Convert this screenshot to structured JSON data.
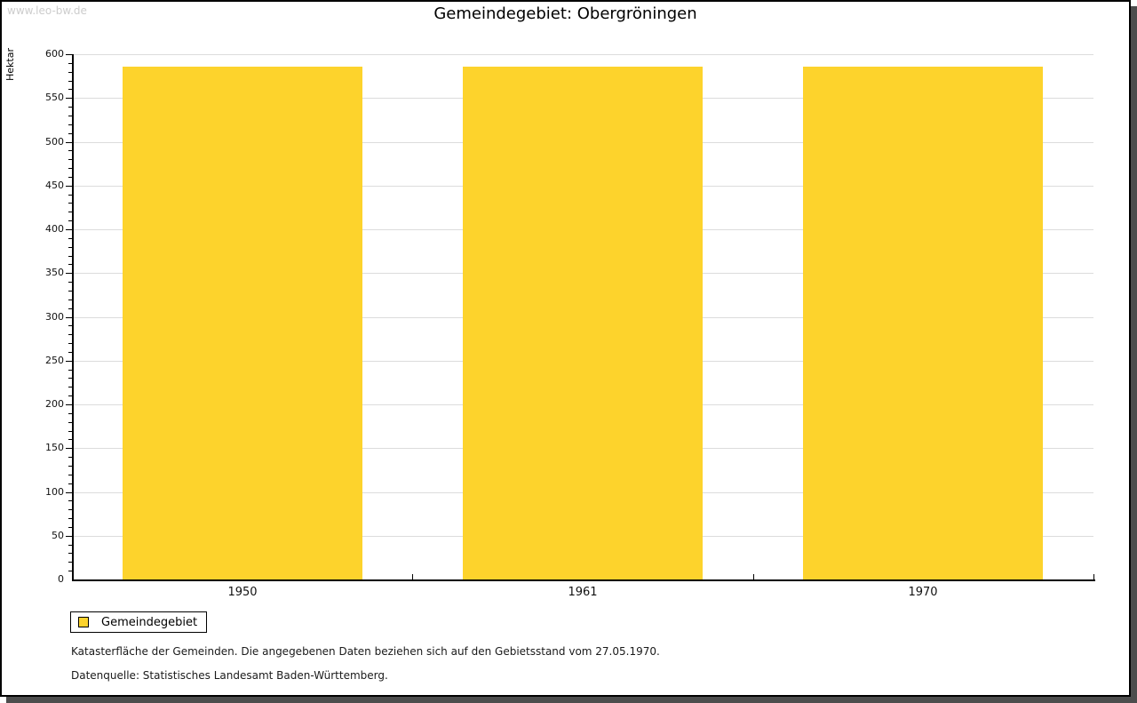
{
  "watermark": "www.leo-bw.de",
  "title": "Gemeindegebiet: Obergröningen",
  "chart_data": {
    "type": "bar",
    "title": "Gemeindegebiet: Obergröningen",
    "xlabel": "",
    "ylabel": "Hektar",
    "categories": [
      "1950",
      "1961",
      "1970"
    ],
    "series": [
      {
        "name": "Gemeindegebiet",
        "values": [
          586,
          586,
          586
        ]
      }
    ],
    "ylim": [
      0,
      600
    ],
    "yticks": [
      0,
      50,
      100,
      150,
      200,
      250,
      300,
      350,
      400,
      450,
      500,
      550,
      600
    ],
    "ytick_minor_step": 10,
    "grid": true,
    "legend_position": "bottom-left",
    "bar_color": "#fdd32c"
  },
  "legend": {
    "items": [
      {
        "label": "Gemeindegebiet",
        "color": "#fdd32c"
      }
    ]
  },
  "notes": {
    "line1": "Katasterfläche der Gemeinden. Die angegebenen Daten beziehen sich auf den Gebietsstand vom 27.05.1970.",
    "line2": "Datenquelle: Statistisches Landesamt Baden-Württemberg."
  },
  "colors": {
    "bar": "#fdd32c",
    "grid": "#dcdcdc",
    "axis": "#000000",
    "text": "#111111",
    "watermark": "#cccccc",
    "frame_border": "#000000",
    "frame_shadow": "#4d4d4d"
  }
}
